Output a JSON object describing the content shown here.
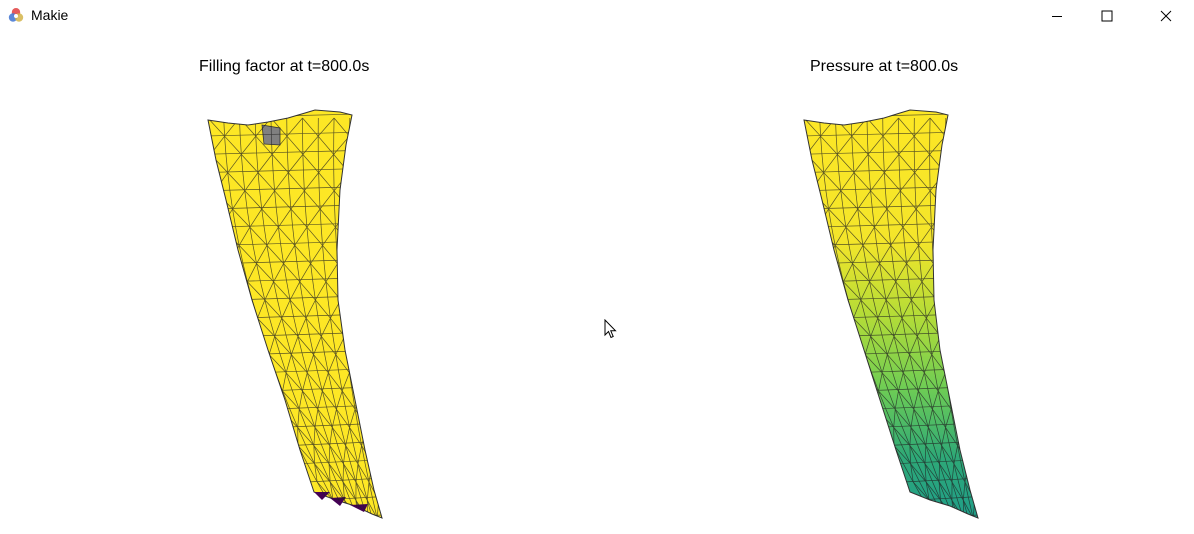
{
  "window": {
    "title": "Makie",
    "icon": "makie-logo-icon"
  },
  "controls": {
    "minimize_icon": "minimize-icon",
    "maximize_icon": "maximize-icon",
    "close_icon": "close-icon"
  },
  "plots": [
    {
      "title": "Filling factor at t=800.0s",
      "colormap": "viridis",
      "dominant_color": "#fde725",
      "low_color": "#440154",
      "highlight_cell_color": "#808080"
    },
    {
      "title": "Pressure at t=800.0s",
      "colormap": "viridis",
      "top_color": "#fde725",
      "mid_color": "#7ad151",
      "bottom_color": "#22a884"
    }
  ],
  "cursor_icon": "mouse-pointer-icon"
}
